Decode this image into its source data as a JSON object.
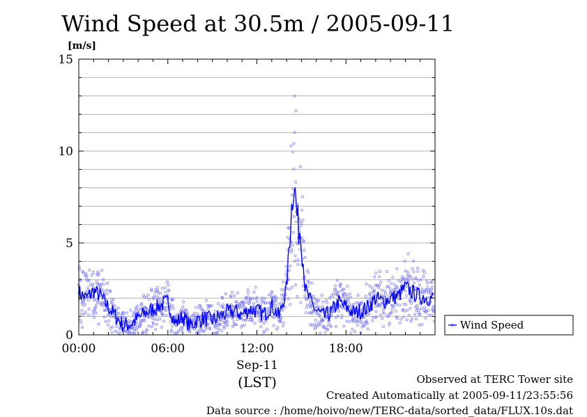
{
  "chart_data": {
    "type": "line",
    "title": "Wind Speed at 30.5m / 2005-09-11",
    "ylabel": "[m/s]",
    "xlabel": "(LST)",
    "date_label": "Sep-11",
    "ylim": [
      0,
      15
    ],
    "xlim": [
      0,
      24
    ],
    "yticks": [
      0,
      5,
      10,
      15
    ],
    "ytick_labels": [
      "0",
      "5",
      "10",
      "15"
    ],
    "xticks": [
      0,
      6,
      12,
      18
    ],
    "xtick_labels": [
      "00:00",
      "06:00",
      "12:00",
      "18:00"
    ],
    "grid": true,
    "legend_position": "right",
    "series": [
      {
        "name": "Wind Speed",
        "color": "#0000ff",
        "x": [
          0,
          0.5,
          1,
          1.5,
          2,
          2.5,
          3,
          3.5,
          4,
          4.5,
          5,
          5.5,
          6,
          6.5,
          7,
          7.5,
          8,
          8.5,
          9,
          9.5,
          10,
          10.5,
          11,
          11.5,
          12,
          12.5,
          13,
          13.5,
          14,
          14.25,
          14.5,
          14.75,
          15,
          15.25,
          15.5,
          16,
          16.5,
          17,
          17.5,
          18,
          18.5,
          19,
          19.5,
          20,
          20.5,
          21,
          21.5,
          22,
          22.5,
          23,
          23.5
        ],
        "values": [
          2.3,
          2.0,
          2.4,
          2.1,
          1.5,
          1.0,
          0.5,
          0.6,
          0.9,
          1.2,
          1.4,
          1.6,
          1.8,
          0.6,
          1.0,
          0.5,
          0.8,
          0.9,
          0.8,
          1.0,
          1.2,
          1.3,
          1.1,
          1.4,
          1.3,
          1.1,
          1.6,
          1.0,
          2.5,
          6.0,
          8.5,
          6.0,
          5.5,
          2.5,
          2.0,
          1.3,
          1.0,
          1.2,
          1.8,
          1.5,
          1.2,
          1.3,
          1.5,
          2.0,
          1.8,
          2.0,
          2.1,
          2.6,
          2.3,
          2.1,
          2.0
        ],
        "scatter_min": 0.1,
        "scatter_max": 13.0
      }
    ]
  },
  "footer": {
    "line1": "Observed at TERC Tower site",
    "line2": "Created Automatically at 2005-09-11/23:55:56",
    "line3": "Data source : /home/hoivo/new/TERC-data/sorted_data/FLUX.10s.dat"
  }
}
